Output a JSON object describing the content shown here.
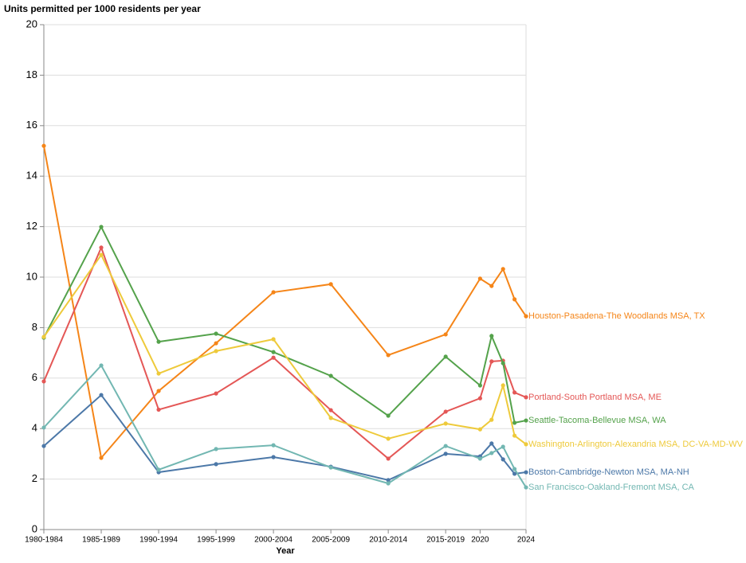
{
  "chart_data": {
    "type": "line",
    "ylabel": "Units permitted per 1000 residents per year",
    "xlabel": "Year",
    "x": [
      1982,
      1987,
      1992,
      1997,
      2002,
      2007,
      2012,
      2017,
      2020,
      2021,
      2022,
      2023,
      2024
    ],
    "xlim": [
      1982,
      2024
    ],
    "xticks": [
      {
        "value": 1982,
        "label": "1980-1984"
      },
      {
        "value": 1987,
        "label": "1985-1989"
      },
      {
        "value": 1992,
        "label": "1990-1994"
      },
      {
        "value": 1997,
        "label": "1995-1999"
      },
      {
        "value": 2002,
        "label": "2000-2004"
      },
      {
        "value": 2007,
        "label": "2005-2009"
      },
      {
        "value": 2012,
        "label": "2010-2014"
      },
      {
        "value": 2017,
        "label": "2015-2019"
      },
      2020,
      2024
    ],
    "ylim": [
      0,
      20
    ],
    "yticks": [
      0,
      2,
      4,
      6,
      8,
      10,
      12,
      14,
      16,
      18,
      20
    ],
    "grid": true,
    "series": [
      {
        "name": "Houston-Pasadena-The Woodlands MSA, TX",
        "color": "#f58518",
        "values": [
          15.2,
          2.84,
          5.49,
          7.38,
          9.4,
          9.72,
          6.91,
          7.73,
          9.94,
          9.65,
          10.32,
          9.12,
          8.45
        ]
      },
      {
        "name": "Portland-South Portland MSA, ME",
        "color": "#e45756",
        "values": [
          5.87,
          11.17,
          4.75,
          5.39,
          6.81,
          4.73,
          2.81,
          4.67,
          5.2,
          6.66,
          6.69,
          5.43,
          5.24
        ]
      },
      {
        "name": "Seattle-Tacoma-Bellevue MSA, WA",
        "color": "#54a24b",
        "values": [
          7.6,
          11.99,
          7.44,
          7.76,
          7.03,
          6.09,
          4.51,
          6.85,
          5.71,
          7.67,
          6.59,
          4.23,
          4.32
        ]
      },
      {
        "name": "Washington-Arlington-Alexandria MSA, DC-VA-MD-WV",
        "color": "#eeca3b",
        "values": [
          7.63,
          10.88,
          6.18,
          7.07,
          7.54,
          4.42,
          3.6,
          4.2,
          3.97,
          4.35,
          5.71,
          3.72,
          3.38
        ]
      },
      {
        "name": "Boston-Cambridge-Newton MSA, MA-NH",
        "color": "#4c78a8",
        "values": [
          3.31,
          5.33,
          2.27,
          2.59,
          2.87,
          2.49,
          1.96,
          3.0,
          2.9,
          3.41,
          2.78,
          2.21,
          2.27
        ]
      },
      {
        "name": "San Francisco-Oakland-Fremont MSA, CA",
        "color": "#72b7b2",
        "values": [
          4.04,
          6.5,
          2.37,
          3.19,
          3.34,
          2.46,
          1.83,
          3.31,
          2.81,
          3.03,
          3.28,
          2.4,
          1.67
        ]
      }
    ]
  }
}
